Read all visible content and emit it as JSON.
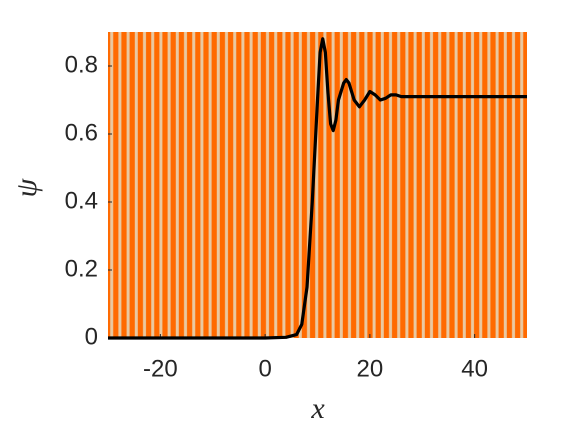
{
  "chart_data": {
    "type": "line",
    "xlabel": "x",
    "ylabel": "ψ",
    "x": [
      -30,
      0,
      4,
      6,
      7,
      8,
      9,
      10,
      10.5,
      11,
      11.5,
      12,
      12.5,
      13,
      13.5,
      14,
      15,
      15.5,
      16,
      17,
      18,
      19,
      20,
      21,
      22,
      23,
      24,
      25,
      26,
      28,
      30,
      50
    ],
    "series": [
      {
        "color": "#000000",
        "values": [
          0,
          0,
          0.002,
          0.01,
          0.04,
          0.15,
          0.4,
          0.7,
          0.84,
          0.88,
          0.84,
          0.72,
          0.63,
          0.61,
          0.64,
          0.7,
          0.75,
          0.76,
          0.75,
          0.7,
          0.68,
          0.7,
          0.725,
          0.715,
          0.7,
          0.705,
          0.715,
          0.715,
          0.71,
          0.71,
          0.71,
          0.71
        ]
      }
    ],
    "xlim": [
      -30,
      50
    ],
    "xticks": [
      -20,
      0,
      20,
      40
    ],
    "ylim": [
      0,
      0.9
    ],
    "yticks": [
      0,
      0.2,
      0.4,
      0.6,
      0.8
    ]
  }
}
